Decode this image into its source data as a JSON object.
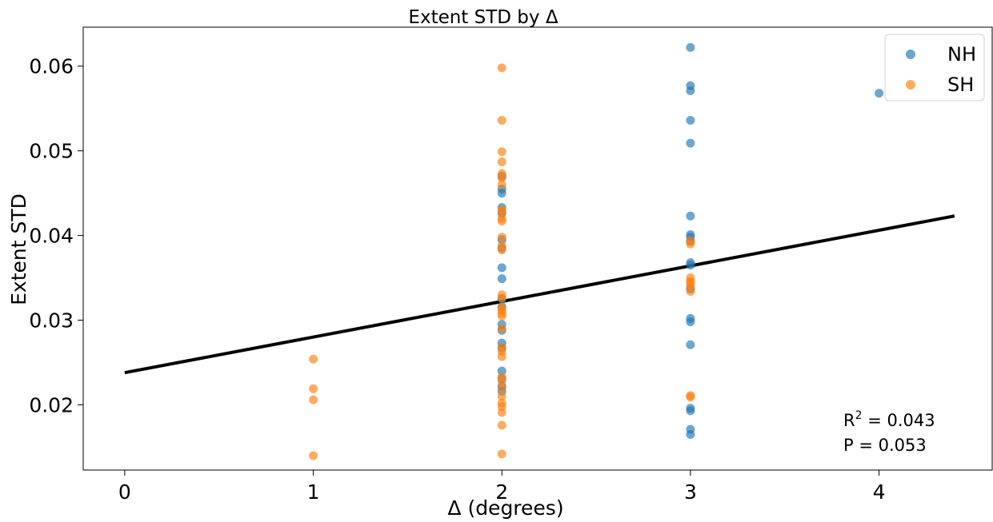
{
  "chart_data": {
    "type": "scatter",
    "title": "Extent STD by Δ",
    "xlabel": "Δ (degrees)",
    "ylabel": "Extent STD",
    "xlim": [
      -0.22,
      4.6
    ],
    "ylim": [
      0.0123,
      0.0646
    ],
    "xticks": [
      0,
      1,
      2,
      3,
      4
    ],
    "yticks": [
      0.02,
      0.03,
      0.04,
      0.05,
      0.06
    ],
    "ytick_labels": [
      "0.02",
      "0.03",
      "0.04",
      "0.05",
      "0.06"
    ],
    "grid": false,
    "legend_position": "top-right",
    "series": [
      {
        "name": "NH",
        "color": "#1f77b4",
        "points": [
          [
            2,
            0.045
          ],
          [
            2,
            0.0455
          ],
          [
            2,
            0.047
          ],
          [
            2,
            0.0433
          ],
          [
            2,
            0.0426
          ],
          [
            2,
            0.0395
          ],
          [
            2,
            0.0385
          ],
          [
            2,
            0.0362
          ],
          [
            2,
            0.0349
          ],
          [
            2,
            0.0325
          ],
          [
            2,
            0.0316
          ],
          [
            2,
            0.0295
          ],
          [
            2,
            0.0288
          ],
          [
            2,
            0.0273
          ],
          [
            2,
            0.0267
          ],
          [
            2,
            0.024
          ],
          [
            2,
            0.0231
          ],
          [
            2,
            0.0222
          ],
          [
            2,
            0.0216
          ],
          [
            3,
            0.0622
          ],
          [
            3,
            0.0577
          ],
          [
            3,
            0.0571
          ],
          [
            3,
            0.0536
          ],
          [
            3,
            0.0509
          ],
          [
            3,
            0.0423
          ],
          [
            3,
            0.0401
          ],
          [
            3,
            0.0398
          ],
          [
            3,
            0.0393
          ],
          [
            3,
            0.0368
          ],
          [
            3,
            0.0365
          ],
          [
            3,
            0.0337
          ],
          [
            3,
            0.0302
          ],
          [
            3,
            0.0298
          ],
          [
            3,
            0.0271
          ],
          [
            3,
            0.0196
          ],
          [
            3,
            0.0193
          ],
          [
            3,
            0.0171
          ],
          [
            3,
            0.0165
          ],
          [
            4,
            0.0568
          ]
        ]
      },
      {
        "name": "SH",
        "color": "#ff7f0e",
        "points": [
          [
            1,
            0.0254
          ],
          [
            1,
            0.0219
          ],
          [
            1,
            0.0206
          ],
          [
            1,
            0.014
          ],
          [
            2,
            0.0598
          ],
          [
            2,
            0.0536
          ],
          [
            2,
            0.0499
          ],
          [
            2,
            0.0487
          ],
          [
            2,
            0.0473
          ],
          [
            2,
            0.0468
          ],
          [
            2,
            0.046
          ],
          [
            2,
            0.043
          ],
          [
            2,
            0.0428
          ],
          [
            2,
            0.042
          ],
          [
            2,
            0.0417
          ],
          [
            2,
            0.0398
          ],
          [
            2,
            0.0388
          ],
          [
            2,
            0.0383
          ],
          [
            2,
            0.033
          ],
          [
            2,
            0.0326
          ],
          [
            2,
            0.0315
          ],
          [
            2,
            0.0312
          ],
          [
            2,
            0.0308
          ],
          [
            2,
            0.0305
          ],
          [
            2,
            0.029
          ],
          [
            2,
            0.0268
          ],
          [
            2,
            0.0263
          ],
          [
            2,
            0.0257
          ],
          [
            2,
            0.0233
          ],
          [
            2,
            0.0228
          ],
          [
            2,
            0.022
          ],
          [
            2,
            0.021
          ],
          [
            2,
            0.0202
          ],
          [
            2,
            0.0198
          ],
          [
            2,
            0.0191
          ],
          [
            2,
            0.0176
          ],
          [
            2,
            0.0142
          ],
          [
            3,
            0.0394
          ],
          [
            3,
            0.039
          ],
          [
            3,
            0.035
          ],
          [
            3,
            0.0346
          ],
          [
            3,
            0.0344
          ],
          [
            3,
            0.034
          ],
          [
            3,
            0.0334
          ],
          [
            3,
            0.0211
          ],
          [
            3,
            0.0209
          ]
        ]
      }
    ],
    "regression_line": {
      "x": [
        0,
        4.4
      ],
      "y": [
        0.0238,
        0.0423
      ],
      "color": "#000000"
    },
    "annotations": {
      "r2_label": "R",
      "r2_sup": "2",
      "r2_value": " = 0.043",
      "p_text": "P = 0.053"
    }
  }
}
